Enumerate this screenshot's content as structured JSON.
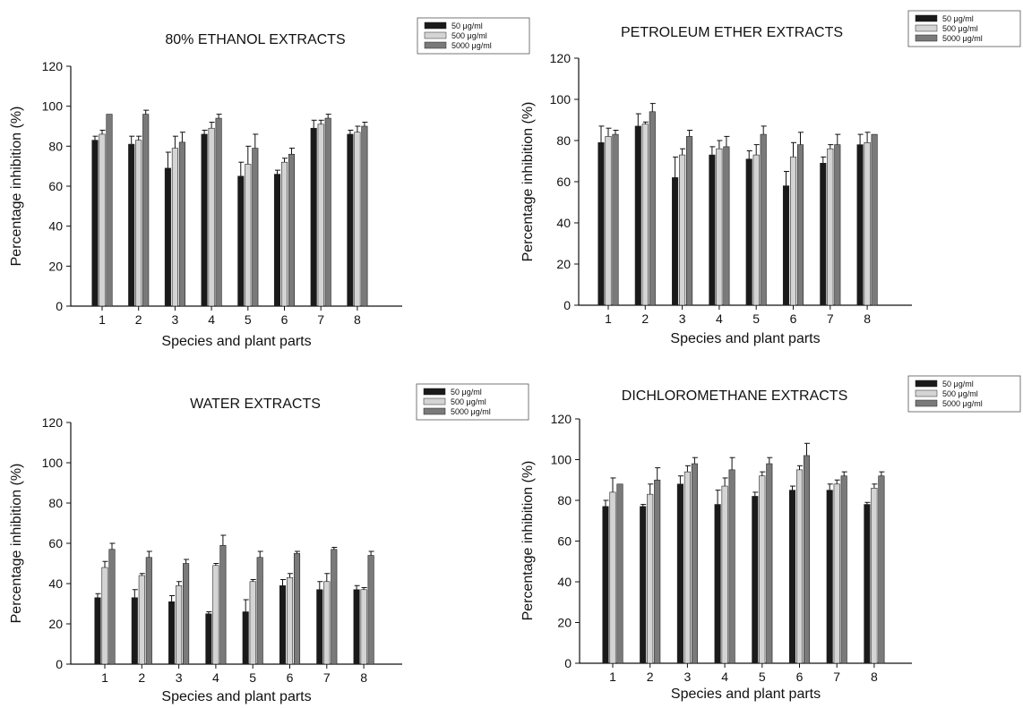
{
  "chart_data": [
    {
      "type": "bar",
      "title": "80% ETHANOL EXTRACTS",
      "xlabel": "Species and plant parts",
      "ylabel": "Percentage inhibition (%)",
      "ylim": [
        0,
        120
      ],
      "yticks": [
        "0",
        "20",
        "40",
        "60",
        "80",
        "100",
        "120"
      ],
      "categories": [
        "1",
        "2",
        "3",
        "4",
        "5",
        "6",
        "7",
        "8"
      ],
      "legend_position": "top-right",
      "series": [
        {
          "name": "50 μg/ml",
          "color": "#1a1a1a",
          "values": [
            83,
            81,
            69,
            86,
            65,
            66,
            89,
            86
          ],
          "errors": [
            2,
            4,
            8,
            2,
            7,
            2,
            4,
            2
          ]
        },
        {
          "name": "500 μg/ml",
          "color": "#d4d4d4",
          "values": [
            86,
            83,
            79,
            89,
            71,
            72,
            91,
            87
          ],
          "errors": [
            2,
            2,
            6,
            3,
            9,
            2,
            2,
            3
          ]
        },
        {
          "name": "5000 μg/ml",
          "color": "#7a7a7a",
          "values": [
            96,
            96,
            82,
            94,
            79,
            76,
            94,
            90
          ],
          "errors": [
            0,
            2,
            5,
            2,
            7,
            3,
            2,
            2
          ]
        }
      ]
    },
    {
      "type": "bar",
      "title": "PETROLEUM ETHER EXTRACTS",
      "xlabel": "Species and plant parts",
      "ylabel": "Percentage inhibition (%)",
      "ylim": [
        0,
        120
      ],
      "yticks": [
        "0",
        "20",
        "40",
        "60",
        "80",
        "100",
        "120"
      ],
      "categories": [
        "1",
        "2",
        "3",
        "4",
        "5",
        "6",
        "7",
        "8"
      ],
      "legend_position": "top-right",
      "series": [
        {
          "name": "50 μg/ml",
          "color": "#1a1a1a",
          "values": [
            79,
            87,
            62,
            73,
            71,
            58,
            69,
            78
          ],
          "errors": [
            8,
            6,
            10,
            4,
            4,
            7,
            3,
            5
          ]
        },
        {
          "name": "500 μg/ml",
          "color": "#d4d4d4",
          "values": [
            82,
            88,
            73,
            76,
            73,
            72,
            76,
            79
          ],
          "errors": [
            4,
            1,
            3,
            4,
            5,
            7,
            2,
            5
          ]
        },
        {
          "name": "5000 μg/ml",
          "color": "#7a7a7a",
          "values": [
            83,
            94,
            82,
            77,
            83,
            78,
            78,
            83
          ],
          "errors": [
            2,
            4,
            3,
            5,
            4,
            6,
            5,
            0
          ]
        }
      ]
    },
    {
      "type": "bar",
      "title": "WATER EXTRACTS",
      "xlabel": "Species and plant parts",
      "ylabel": "Percentage inhibition (%)",
      "ylim": [
        0,
        120
      ],
      "yticks": [
        "0",
        "20",
        "40",
        "60",
        "80",
        "100",
        "120"
      ],
      "categories": [
        "1",
        "2",
        "3",
        "4",
        "5",
        "6",
        "7",
        "8"
      ],
      "legend_position": "top-right",
      "series": [
        {
          "name": "50 μg/ml",
          "color": "#1a1a1a",
          "values": [
            33,
            33,
            31,
            25,
            26,
            39,
            37,
            37
          ],
          "errors": [
            2,
            4,
            3,
            1,
            6,
            3,
            4,
            2
          ]
        },
        {
          "name": "500 μg/ml",
          "color": "#d4d4d4",
          "values": [
            48,
            44,
            39,
            49,
            41,
            43,
            41,
            37
          ],
          "errors": [
            3,
            1,
            2,
            1,
            1,
            2,
            4,
            1
          ]
        },
        {
          "name": "5000 μg/ml",
          "color": "#7a7a7a",
          "values": [
            57,
            53,
            50,
            59,
            53,
            55,
            57,
            54
          ],
          "errors": [
            3,
            3,
            2,
            5,
            3,
            1,
            1,
            2
          ]
        }
      ]
    },
    {
      "type": "bar",
      "title": "DICHLOROMETHANE EXTRACTS",
      "xlabel": "Species and plant parts",
      "ylabel": "Percentage inhibition (%)",
      "ylim": [
        0,
        120
      ],
      "yticks": [
        "0",
        "20",
        "40",
        "60",
        "80",
        "100",
        "120"
      ],
      "categories": [
        "1",
        "2",
        "3",
        "4",
        "5",
        "6",
        "7",
        "8"
      ],
      "legend_position": "top-right",
      "series": [
        {
          "name": "50 μg/ml",
          "color": "#1a1a1a",
          "values": [
            77,
            77,
            88,
            78,
            82,
            85,
            85,
            78
          ],
          "errors": [
            3,
            1,
            4,
            7,
            2,
            2,
            3,
            1
          ]
        },
        {
          "name": "500 μg/ml",
          "color": "#d4d4d4",
          "values": [
            84,
            83,
            94,
            87,
            92,
            95,
            88,
            86
          ],
          "errors": [
            7,
            5,
            3,
            4,
            2,
            2,
            2,
            2
          ]
        },
        {
          "name": "5000 μg/ml",
          "color": "#7a7a7a",
          "values": [
            88,
            90,
            98,
            95,
            98,
            102,
            92,
            92
          ],
          "errors": [
            0,
            6,
            3,
            6,
            3,
            6,
            2,
            2
          ]
        }
      ]
    }
  ]
}
